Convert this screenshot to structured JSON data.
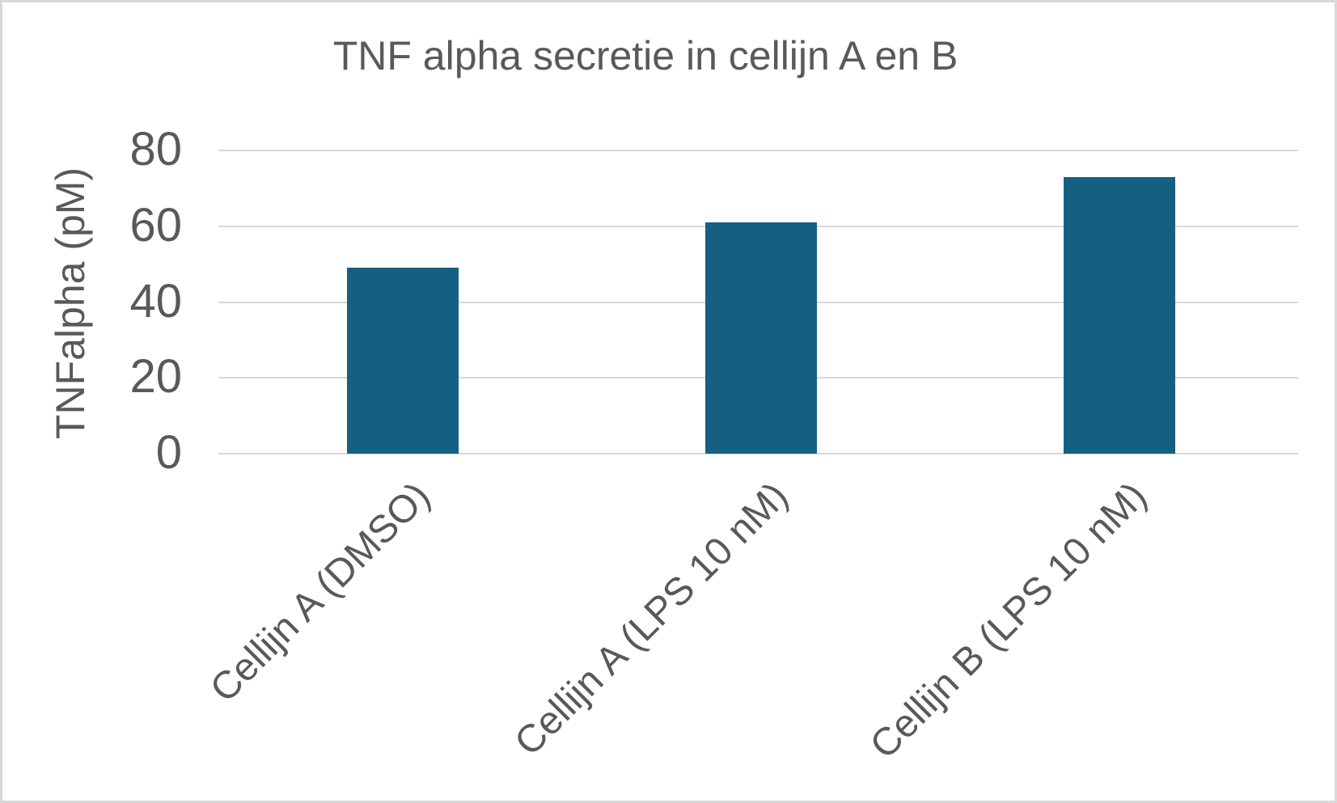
{
  "chart_data": {
    "type": "bar",
    "title": "TNF alpha secretie in cellijn A en B",
    "ylabel": "TNFalpha (pM)",
    "xlabel": "",
    "categories": [
      "Cellijn A (DMSO)",
      "Cellijn A (LPS 10 nM)",
      "Cellijn B (LPS 10 nM)"
    ],
    "values": [
      49,
      61,
      73
    ],
    "ylim": [
      0,
      80
    ],
    "yticks": [
      0,
      20,
      40,
      60,
      80
    ],
    "grid": true,
    "legend": false,
    "colors": {
      "bar": "#156082",
      "text": "#595959",
      "gridline": "#d9d9d9",
      "background": "#ffffff"
    }
  }
}
